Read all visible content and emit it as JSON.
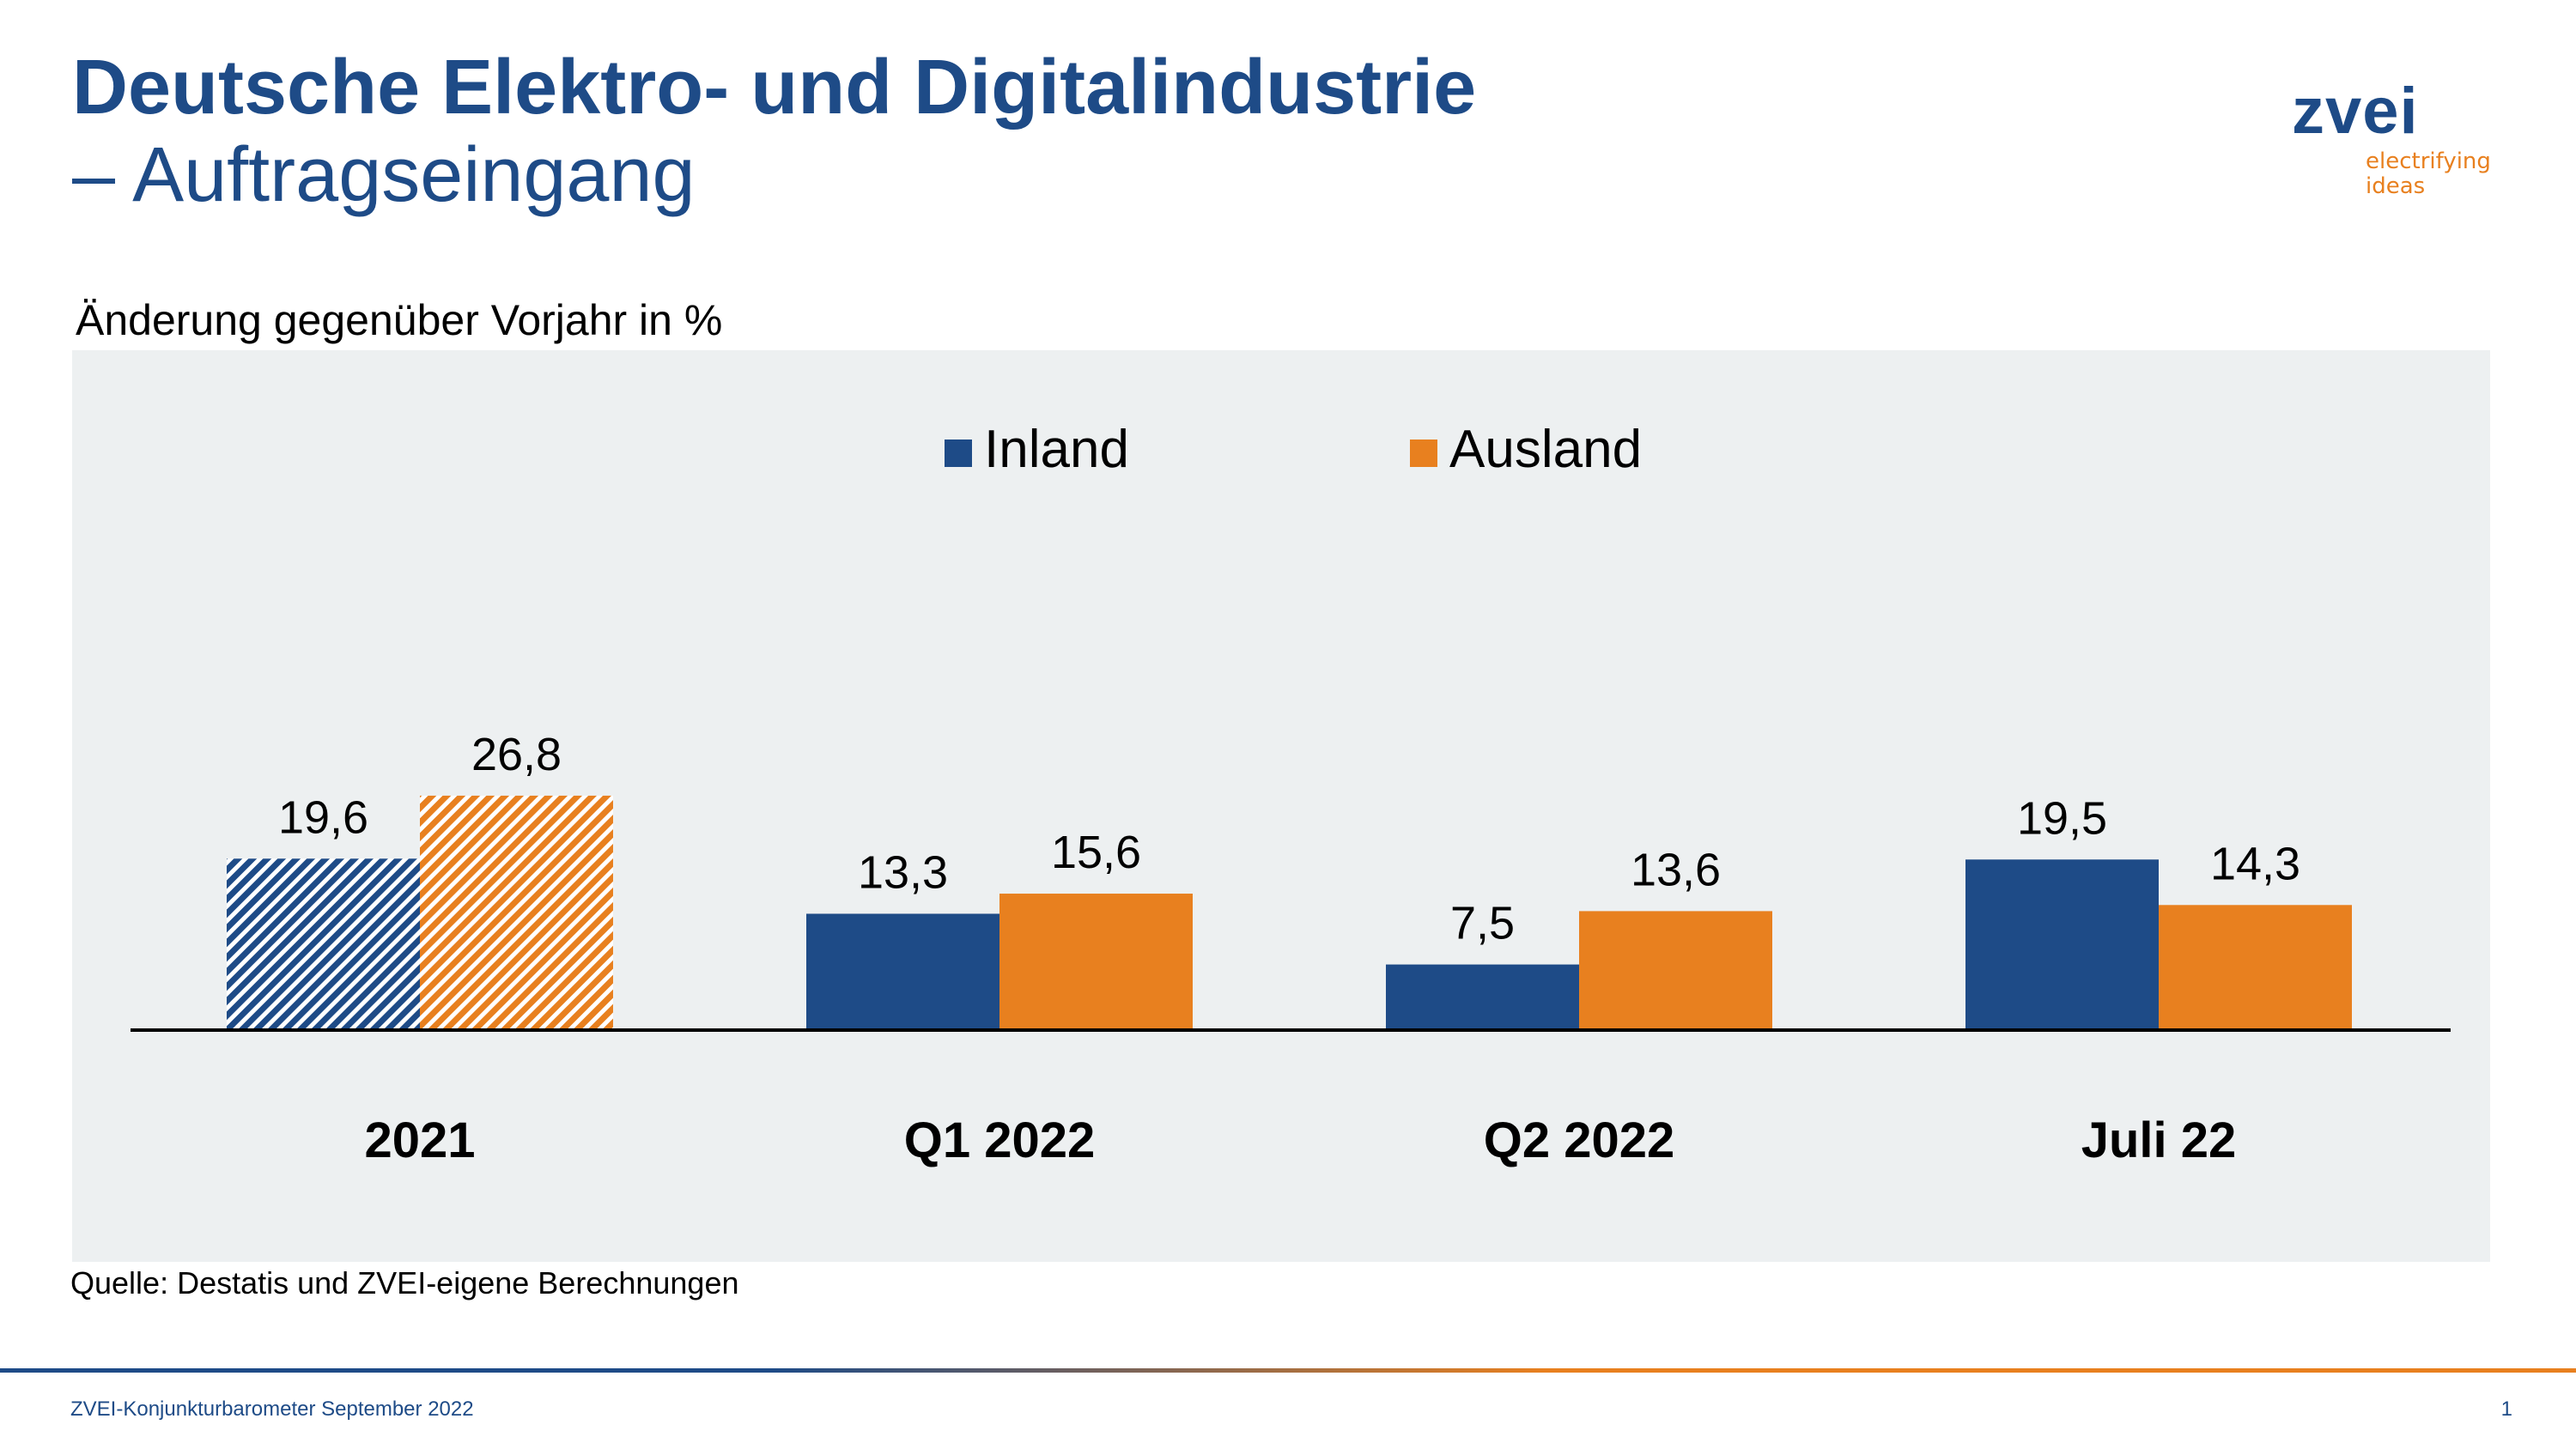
{
  "header": {
    "title": "Deutsche Elektro- und Digitalindustrie",
    "subtitle": "– Auftragseingang"
  },
  "logo": {
    "word": "zvei",
    "tagline_line1": "electrifying",
    "tagline_line2": "ideas"
  },
  "chart_caption": "Änderung gegenüber Vorjahr in %",
  "source": "Quelle: Destatis und ZVEI-eigene Berechnungen",
  "footer": {
    "left": "ZVEI-Konjunkturbarometer September 2022",
    "page_number": "1"
  },
  "colors": {
    "brand_blue": "#1e4b87",
    "brand_orange": "#e8801f",
    "panel_bg": "#edf0f1"
  },
  "chart_data": {
    "type": "bar",
    "title": "",
    "xlabel": "",
    "ylabel": "Änderung gegenüber Vorjahr in %",
    "categories": [
      "2021",
      "Q1 2022",
      "Q2 2022",
      "Juli 22"
    ],
    "series": [
      {
        "name": "Inland",
        "color": "#1e4b87",
        "values": [
          19.6,
          13.3,
          7.5,
          19.5
        ],
        "labels": [
          "19,6",
          "13,3",
          "7,5",
          "19,5"
        ]
      },
      {
        "name": "Ausland",
        "color": "#e8801f",
        "values": [
          26.8,
          15.6,
          13.6,
          14.3
        ],
        "labels": [
          "26,8",
          "15,6",
          "13,6",
          "14,3"
        ]
      }
    ],
    "hatched_categories": [
      "2021"
    ],
    "legend_position": "top-center",
    "grid": false,
    "ylim": [
      0,
      26.8
    ]
  }
}
